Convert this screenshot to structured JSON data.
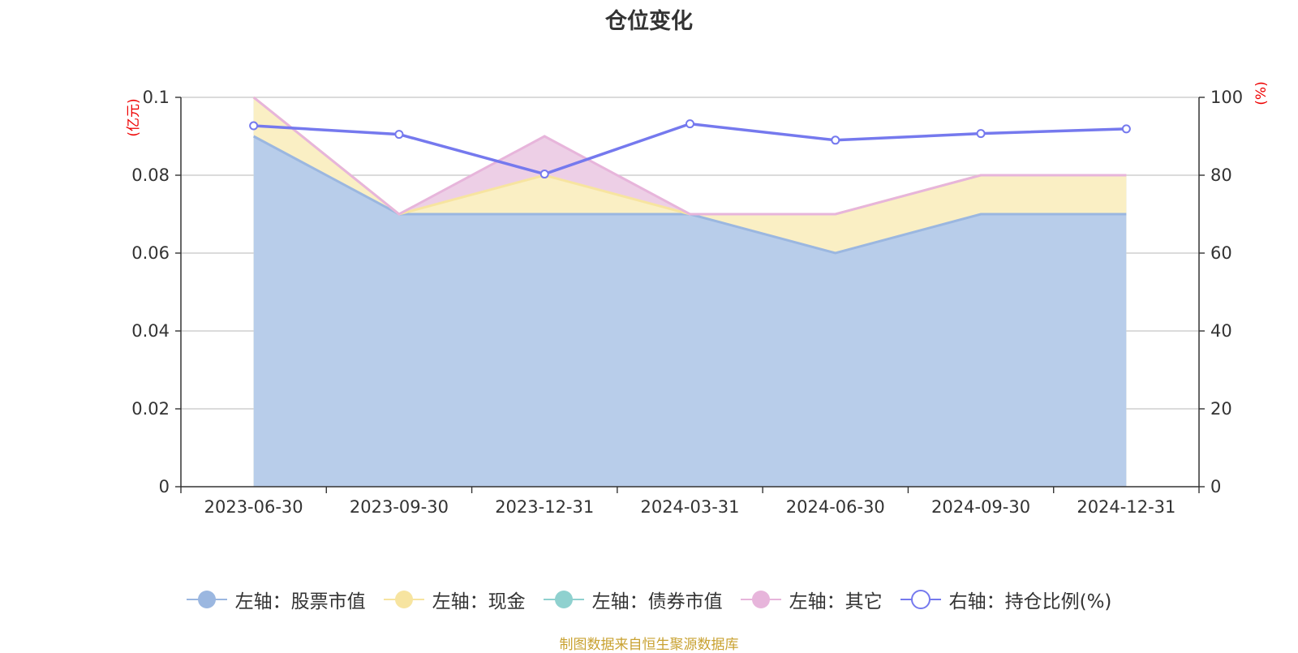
{
  "chart_data": {
    "type": "area",
    "title": "仓位变化",
    "categories": [
      "2023-06-30",
      "2023-09-30",
      "2023-12-31",
      "2024-03-31",
      "2024-06-30",
      "2024-09-30",
      "2024-12-31"
    ],
    "left_axis": {
      "unit": "(亿元)",
      "ylim": [
        0,
        0.1
      ],
      "ticks": [
        "0",
        "0.02",
        "0.04",
        "0.06",
        "0.08",
        "0.1"
      ]
    },
    "right_axis": {
      "unit": "(%)",
      "ylim": [
        0,
        100
      ],
      "ticks": [
        "0",
        "20",
        "40",
        "60",
        "80",
        "100"
      ]
    },
    "series": [
      {
        "name": "左轴：股票市值",
        "axis": "left",
        "stacked": true,
        "color": "#9bb7e0",
        "fill": "#b8cdea",
        "values": [
          0.09,
          0.07,
          0.07,
          0.07,
          0.06,
          0.07,
          0.07
        ]
      },
      {
        "name": "左轴：现金",
        "axis": "left",
        "stacked": true,
        "color": "#f7e4a0",
        "fill": "#faefc4",
        "values": [
          0.01,
          0.0,
          0.01,
          0.0,
          0.01,
          0.01,
          0.01
        ]
      },
      {
        "name": "左轴：债券市值",
        "axis": "left",
        "stacked": true,
        "color": "#8fd1cf",
        "fill": "#bfe6e4",
        "values": [
          0,
          0,
          0,
          0,
          0,
          0,
          0
        ]
      },
      {
        "name": "左轴：其它",
        "axis": "left",
        "stacked": true,
        "color": "#e7b5db",
        "fill": "#edcfe6",
        "values": [
          0.0,
          0.0,
          0.01,
          0.0,
          0.0,
          0.0,
          0.0
        ]
      },
      {
        "name": "右轴：持仓比例(%)",
        "axis": "right",
        "type": "line",
        "color": "#7579ee",
        "values": [
          92.7,
          90.5,
          80.3,
          93.2,
          89.0,
          90.7,
          91.9
        ]
      }
    ],
    "grid": true,
    "legend_position": "bottom"
  },
  "source_note": "制图数据来自恒生聚源数据库"
}
